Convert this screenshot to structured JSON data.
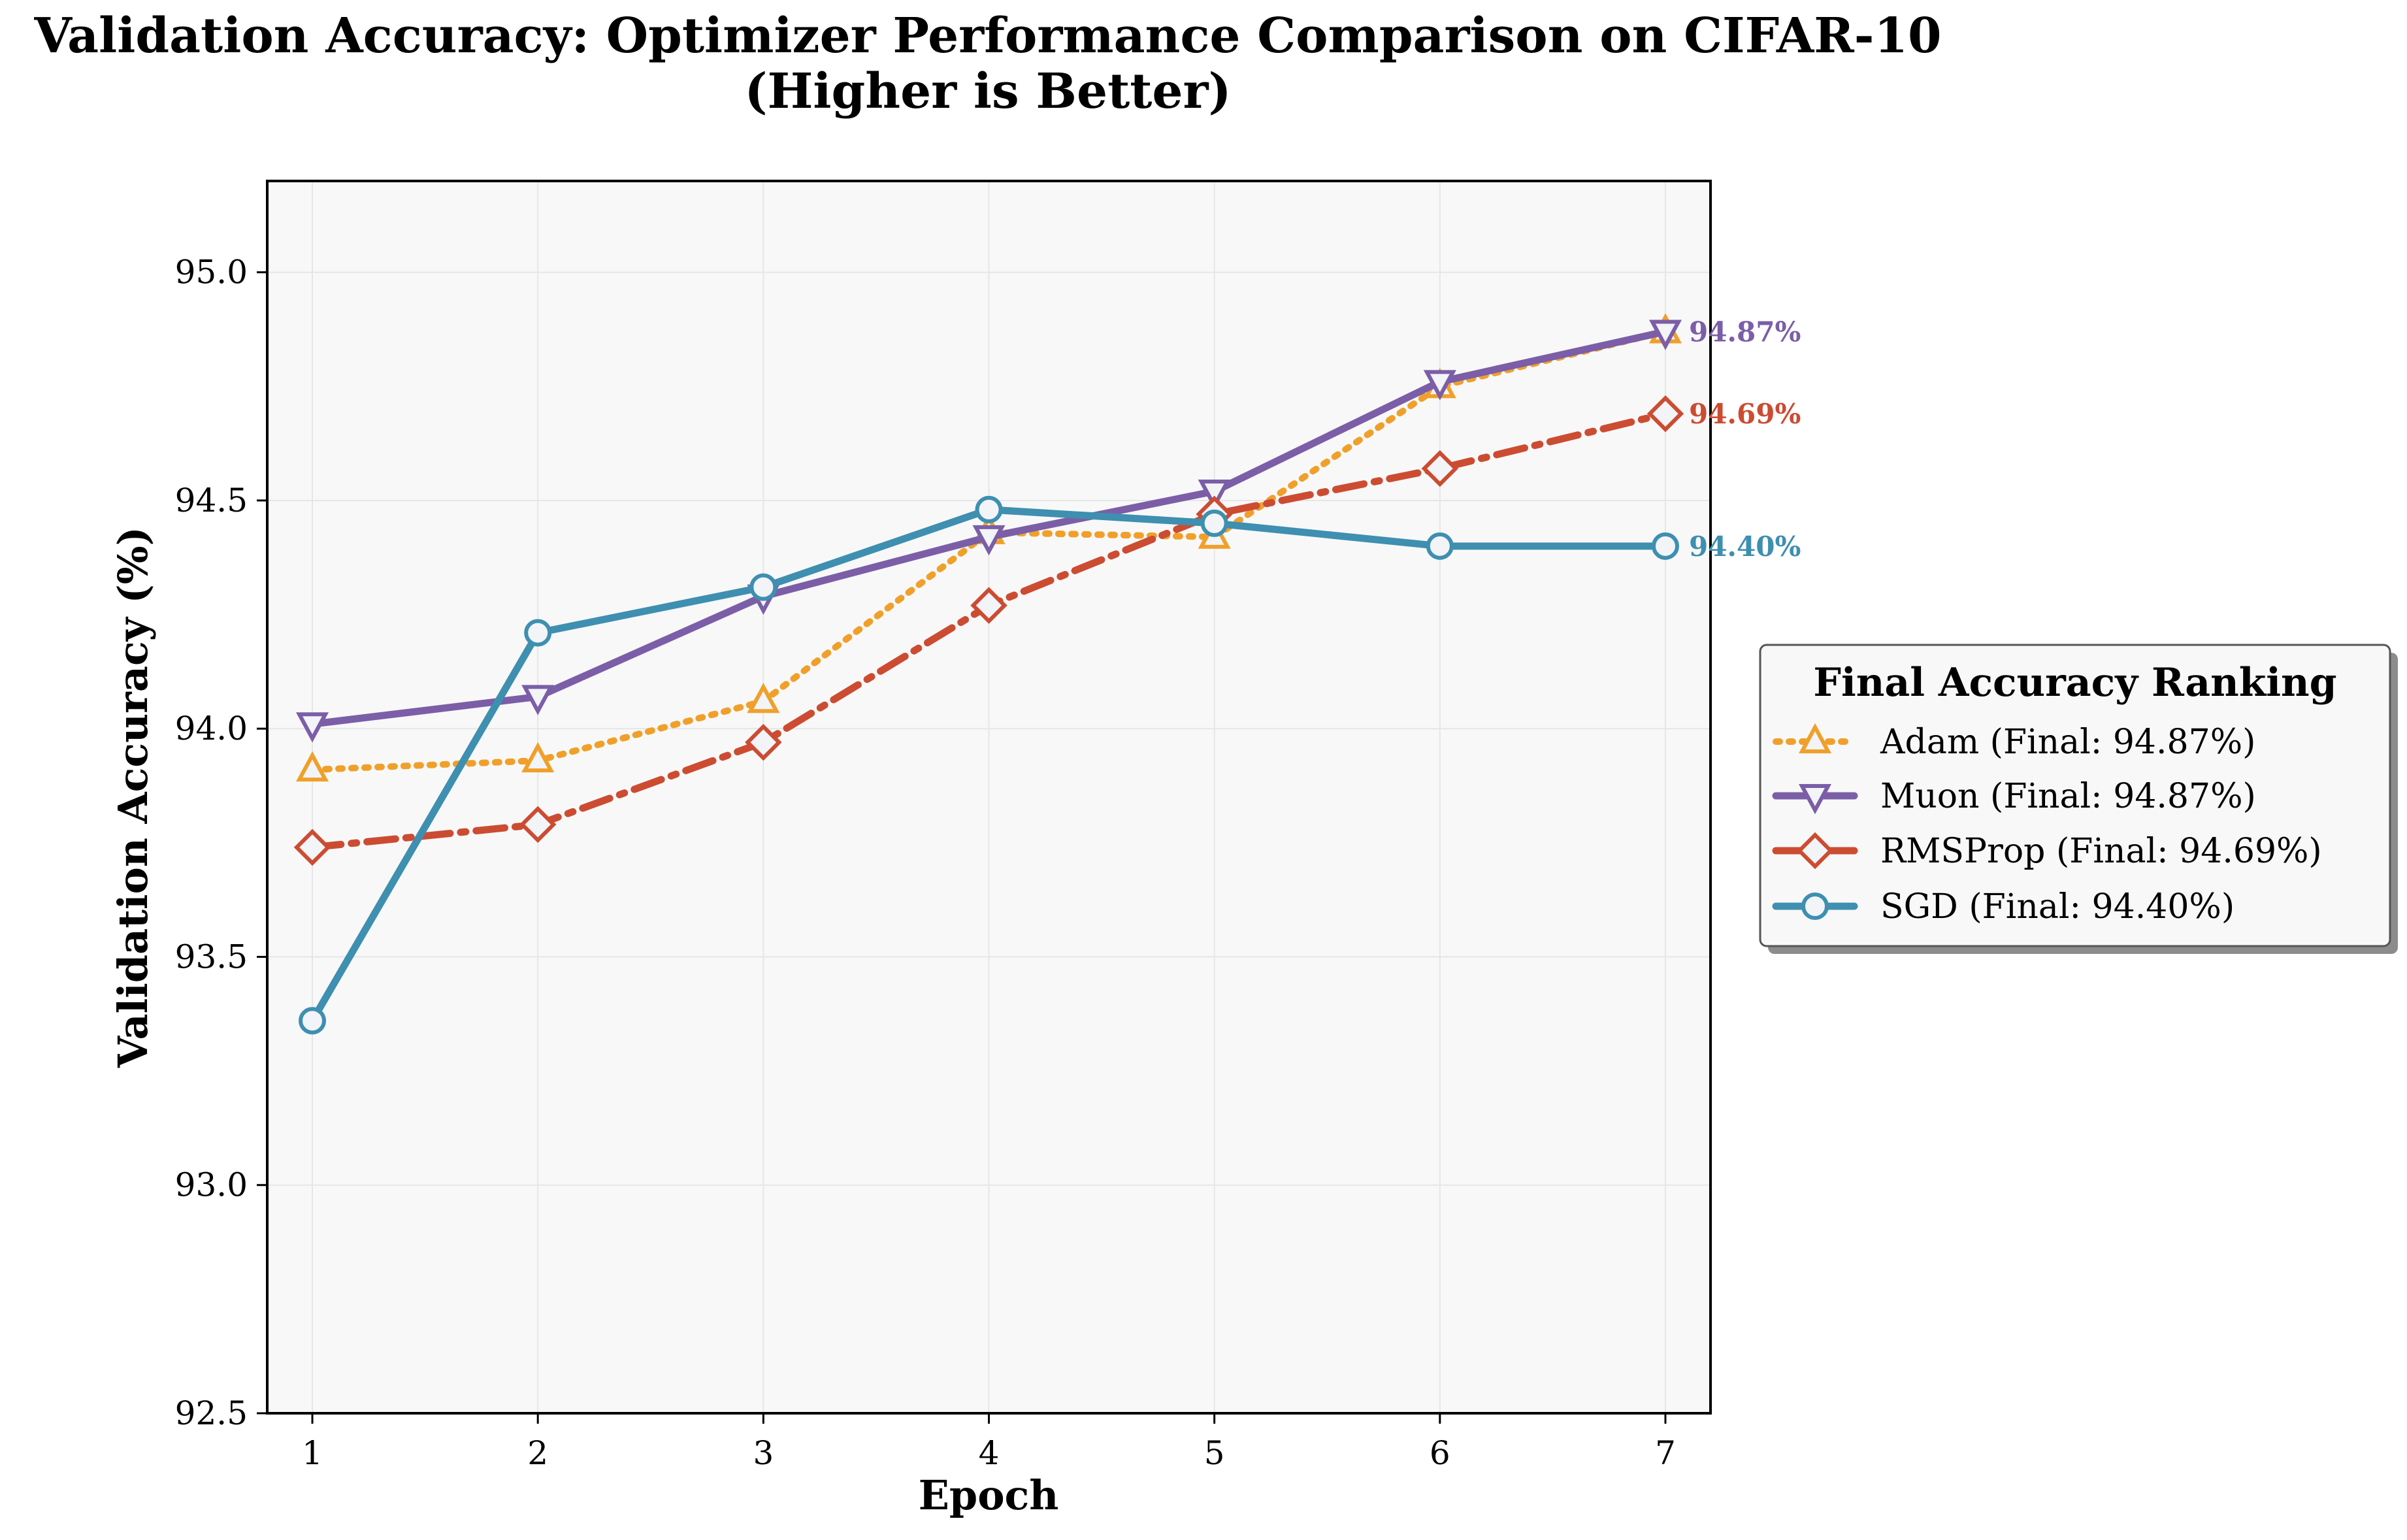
{
  "chart_data": {
    "type": "line",
    "title": "Validation Accuracy: Optimizer Performance Comparison on CIFAR-10",
    "subtitle": "(Higher is Better)",
    "xlabel": "Epoch",
    "ylabel": "Validation Accuracy (%)",
    "x": [
      1,
      2,
      3,
      4,
      5,
      6,
      7
    ],
    "xlim": [
      0.8,
      7.2
    ],
    "ylim": [
      92.5,
      95.2
    ],
    "xticks": [
      "1",
      "2",
      "3",
      "4",
      "5",
      "6",
      "7"
    ],
    "yticks": [
      "92.5",
      "93.0",
      "93.5",
      "94.0",
      "94.5",
      "95.0"
    ],
    "grid": true,
    "legend": {
      "title": "Final Accuracy Ranking",
      "placement": "center-right outside plot",
      "entries": [
        "Adam (Final: 94.87%)",
        "Muon (Final: 94.87%)",
        "RMSProp (Final: 94.69%)",
        "SGD (Final: 94.40%)"
      ]
    },
    "series": [
      {
        "name": "Adam",
        "values": [
          93.91,
          93.93,
          94.06,
          94.43,
          94.42,
          94.75,
          94.87
        ],
        "color": "#f0a02a",
        "marker": "triangle-up",
        "line_style": "dotted",
        "end_label": ""
      },
      {
        "name": "Muon",
        "values": [
          94.01,
          94.07,
          94.29,
          94.42,
          94.52,
          94.76,
          94.87
        ],
        "color": "#7b5ea7",
        "marker": "triangle-down",
        "line_style": "solid",
        "end_label": "94.87%"
      },
      {
        "name": "RMSProp",
        "values": [
          93.74,
          93.79,
          93.97,
          94.27,
          94.47,
          94.57,
          94.69
        ],
        "color": "#cc4c32",
        "marker": "diamond",
        "line_style": "dash-dot",
        "end_label": "94.69%"
      },
      {
        "name": "SGD",
        "values": [
          93.36,
          94.21,
          94.31,
          94.48,
          94.45,
          94.4,
          94.4
        ],
        "color": "#3e8fb0",
        "marker": "circle",
        "line_style": "solid",
        "end_label": "94.40%"
      }
    ],
    "colors": {
      "plot_background": "#f8f8f8",
      "grid": "#e6e6e6",
      "marker_fill": "#f2f4f8"
    }
  }
}
